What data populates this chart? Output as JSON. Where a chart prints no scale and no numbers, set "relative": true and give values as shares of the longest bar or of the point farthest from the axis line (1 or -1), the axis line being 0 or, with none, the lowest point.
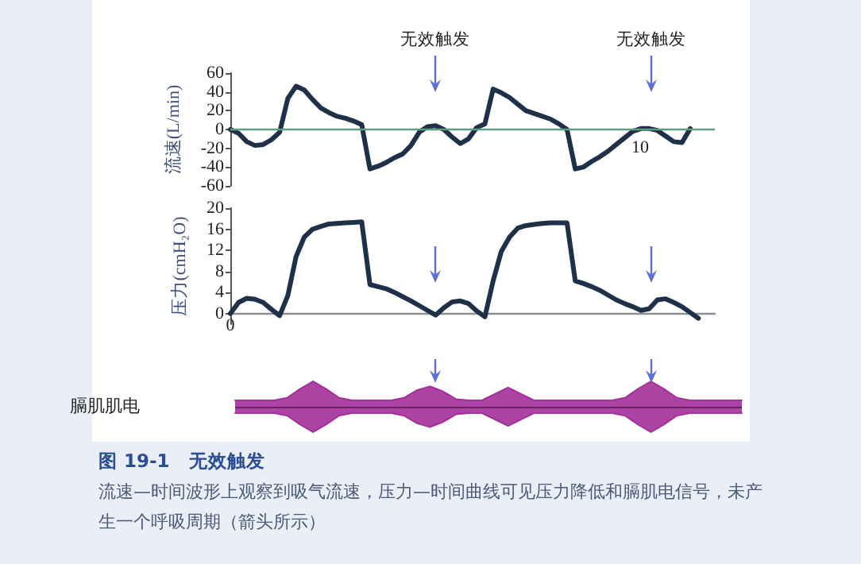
{
  "chart_data": [
    {
      "type": "line",
      "ylabel": "流速(L/min)",
      "color": "#1f3049",
      "marker": "none",
      "categories": [
        null,
        null,
        null,
        null,
        null,
        null,
        null,
        null,
        null,
        null,
        null,
        null,
        null,
        null,
        null,
        null,
        null,
        null,
        null,
        null,
        null,
        null,
        null,
        null,
        null,
        null,
        null,
        null,
        null,
        null,
        null,
        null,
        null,
        null,
        null,
        null,
        null,
        null,
        null,
        null,
        null,
        null,
        null,
        null,
        null,
        null,
        null,
        null,
        null,
        null,
        null,
        null,
        null,
        null,
        null,
        null,
        null,
        null,
        null,
        null
      ],
      "values": [
        0,
        -4,
        -13,
        -17,
        -16,
        -11,
        -3,
        33,
        46,
        42,
        32,
        23,
        18,
        14,
        12,
        9,
        5,
        -42,
        -39,
        -35,
        -30,
        -26,
        -17,
        -3,
        3,
        4,
        0,
        -8,
        -15,
        -10,
        2,
        6,
        43,
        39,
        34,
        27,
        20,
        17,
        14,
        11,
        6,
        0,
        -42,
        -40,
        -34,
        -29,
        -23,
        -16,
        -9,
        -2,
        1,
        1,
        -1,
        -7,
        -13,
        -14,
        1,
        null,
        null,
        null
      ],
      "ylim": [
        -60,
        60
      ],
      "yticks": [
        -60,
        -40,
        -20,
        0,
        20,
        40,
        60
      ],
      "ref_lines": [
        {
          "axis": "y",
          "value": 0,
          "color": "#5f9c80"
        }
      ],
      "annotations": [
        "无效触发",
        "无效触发",
        "10"
      ]
    },
    {
      "type": "line",
      "ylabel": "压力(cmH₂O)",
      "color": "#1f3049",
      "marker": "none",
      "categories": [
        null,
        null,
        null,
        null,
        null,
        null,
        null,
        null,
        null,
        null,
        null,
        null,
        null,
        null,
        null,
        null,
        null,
        null,
        null,
        null,
        null,
        null,
        null,
        null,
        null,
        null,
        null,
        null,
        null,
        null,
        null,
        null,
        null,
        null,
        null,
        null,
        null,
        null,
        null,
        null,
        null,
        null,
        null,
        null,
        null,
        null,
        null,
        null,
        null,
        null,
        null,
        null,
        null,
        null,
        null,
        null,
        null,
        null,
        null,
        null
      ],
      "values": [
        0,
        2.1,
        2.9,
        2.7,
        2.1,
        0.8,
        -0.4,
        3.4,
        10.8,
        14.5,
        16,
        16.5,
        17,
        17.1,
        17.2,
        17.3,
        17.4,
        5.5,
        5.1,
        4.7,
        4,
        3.2,
        2.4,
        1.5,
        0.6,
        -0.3,
        1.1,
        2.2,
        2.4,
        1.9,
        0.5,
        -0.6,
        6.2,
        11.8,
        14.5,
        16.2,
        16.7,
        16.9,
        17.1,
        17.2,
        17.2,
        17.2,
        6.2,
        5.7,
        5.1,
        4.4,
        3.5,
        2.6,
        1.9,
        1.3,
        0.6,
        0.9,
        2.6,
        2.8,
        2.1,
        1.3,
        0.2,
        -0.9,
        null,
        null
      ],
      "ylim": [
        -2,
        20
      ],
      "yticks": [
        0,
        4,
        8,
        12,
        16,
        20
      ],
      "annotations": [
        "0"
      ]
    },
    {
      "type": "area",
      "ylabel": "膈肌肌电",
      "relative": true,
      "marker": "none",
      "ref_lines": [
        {
          "axis": "y",
          "value": 0,
          "color": "#6e1f68"
        }
      ],
      "categories": [
        null,
        null,
        null,
        null,
        null,
        null,
        null,
        null,
        null,
        null,
        null,
        null,
        null,
        null,
        null,
        null,
        null,
        null,
        null,
        null,
        null,
        null,
        null,
        null,
        null,
        null,
        null,
        null,
        null,
        null,
        null,
        null,
        null,
        null,
        null,
        null,
        null,
        null,
        null,
        null
      ],
      "series": [
        {
          "color": "#a3309a",
          "values": [
            0.25,
            0.25,
            0.25,
            0.25,
            0.35,
            0.7,
            1,
            0.7,
            0.35,
            0.25,
            0.25,
            0.25,
            0.25,
            0.35,
            0.65,
            0.8,
            0.6,
            0.3,
            0.25,
            0.25,
            0.5,
            0.75,
            0.5,
            0.25,
            0.25,
            0.25,
            0.25,
            0.25,
            0.25,
            0.25,
            0.35,
            0.7,
            1,
            0.7,
            0.35,
            0.25,
            0.25,
            0.25,
            0.25,
            0.25
          ]
        },
        {
          "color": "#a3309a",
          "values": [
            -0.25,
            -0.25,
            -0.25,
            -0.25,
            -0.35,
            -0.7,
            -1,
            -0.7,
            -0.35,
            -0.25,
            -0.25,
            -0.25,
            -0.25,
            -0.35,
            -0.65,
            -0.8,
            -0.6,
            -0.3,
            -0.25,
            -0.25,
            -0.5,
            -0.75,
            -0.5,
            -0.25,
            -0.25,
            -0.25,
            -0.25,
            -0.25,
            -0.25,
            -0.25,
            -0.35,
            -0.7,
            -1,
            -0.7,
            -0.35,
            -0.25,
            -0.25,
            -0.25,
            -0.25,
            -0.25
          ]
        }
      ],
      "annotations": [
        "图 19-1　无效触发",
        "流速—时间波形上观察到吸气流速，压力—时间曲线可见压力降低和膈肌电信号，未产生一个呼吸周期（箭头所示）"
      ]
    }
  ]
}
